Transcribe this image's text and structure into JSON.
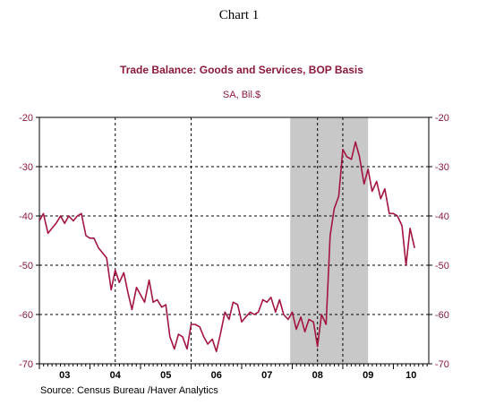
{
  "page": {
    "heading": "Chart 1"
  },
  "chart_data": {
    "type": "line",
    "title": "Trade Balance:  Goods and Services, BOP Basis",
    "subtitle": "SA, Bil.$",
    "source": "Source:  Census Bureau /Haver Analytics",
    "ylim": [
      -70,
      -20
    ],
    "yticks": [
      -20,
      -30,
      -40,
      -50,
      -60,
      -70
    ],
    "xlim": [
      2003.0,
      2010.7
    ],
    "year_labels": [
      {
        "label": "03",
        "x": 2003.5
      },
      {
        "label": "04",
        "x": 2004.5
      },
      {
        "label": "05",
        "x": 2005.5
      },
      {
        "label": "06",
        "x": 2006.5
      },
      {
        "label": "07",
        "x": 2007.5
      },
      {
        "label": "08",
        "x": 2008.5
      },
      {
        "label": "09",
        "x": 2009.5
      },
      {
        "label": "10",
        "x": 2010.35
      }
    ],
    "vertical_gridlines": [
      2004.5,
      2006.0,
      2008.5,
      2009.0
    ],
    "recession_shading": [
      2007.96,
      2009.5
    ],
    "grid": true,
    "colors": {
      "line": "#a3153f",
      "axis_text": "#8b1a3a",
      "shading": "#c8c8c8"
    },
    "series": [
      {
        "x": [
          2003.0,
          2003.08,
          2003.17,
          2003.25,
          2003.33,
          2003.42,
          2003.5,
          2003.58,
          2003.67,
          2003.75,
          2003.83,
          2003.92,
          2004.0,
          2004.08,
          2004.17,
          2004.25,
          2004.33,
          2004.42,
          2004.5,
          2004.58,
          2004.67,
          2004.75,
          2004.83,
          2004.92,
          2005.0,
          2005.08,
          2005.17,
          2005.25,
          2005.33,
          2005.42,
          2005.5,
          2005.58,
          2005.67,
          2005.75,
          2005.83,
          2005.92,
          2006.0,
          2006.08,
          2006.17,
          2006.25,
          2006.33,
          2006.42,
          2006.5,
          2006.58,
          2006.67,
          2006.75,
          2006.83,
          2006.92,
          2007.0,
          2007.08,
          2007.17,
          2007.25,
          2007.33,
          2007.42,
          2007.5,
          2007.58,
          2007.67,
          2007.75,
          2007.83,
          2007.92,
          2008.0,
          2008.08,
          2008.17,
          2008.25,
          2008.33,
          2008.42,
          2008.5,
          2008.58,
          2008.67,
          2008.75,
          2008.83,
          2008.92,
          2009.0,
          2009.08,
          2009.17,
          2009.25,
          2009.33,
          2009.42,
          2009.5,
          2009.58,
          2009.67,
          2009.75,
          2009.83,
          2009.92,
          2010.0,
          2010.08,
          2010.17,
          2010.25,
          2010.33,
          2010.42
        ],
        "values": [
          -41.0,
          -39.5,
          -43.5,
          -42.5,
          -41.5,
          -40.0,
          -41.5,
          -40.0,
          -41.0,
          -40.0,
          -39.5,
          -44.0,
          -44.5,
          -44.5,
          -46.5,
          -47.5,
          -48.5,
          -55.0,
          -51.0,
          -53.5,
          -51.5,
          -55.5,
          -59.0,
          -54.5,
          -56.0,
          -57.5,
          -53.0,
          -57.5,
          -57.0,
          -58.5,
          -58.0,
          -64.5,
          -67.0,
          -64.0,
          -64.5,
          -67.0,
          -62.0,
          -62.0,
          -62.5,
          -64.5,
          -66.0,
          -65.0,
          -67.5,
          -64.0,
          -59.5,
          -61.0,
          -57.5,
          -58.0,
          -61.5,
          -60.5,
          -59.5,
          -60.0,
          -59.5,
          -57.0,
          -57.5,
          -56.5,
          -59.5,
          -57.0,
          -60.0,
          -61.0,
          -59.5,
          -63.0,
          -60.5,
          -63.5,
          -61.0,
          -61.5,
          -66.5,
          -60.0,
          -62.0,
          -44.0,
          -38.5,
          -36.0,
          -26.5,
          -28.0,
          -28.5,
          -25.0,
          -28.0,
          -33.5,
          -30.5,
          -35.0,
          -33.0,
          -36.5,
          -34.5,
          -39.5,
          -39.5,
          -40.0,
          -42.0,
          -50.0,
          -42.5,
          -46.5
        ]
      }
    ]
  }
}
